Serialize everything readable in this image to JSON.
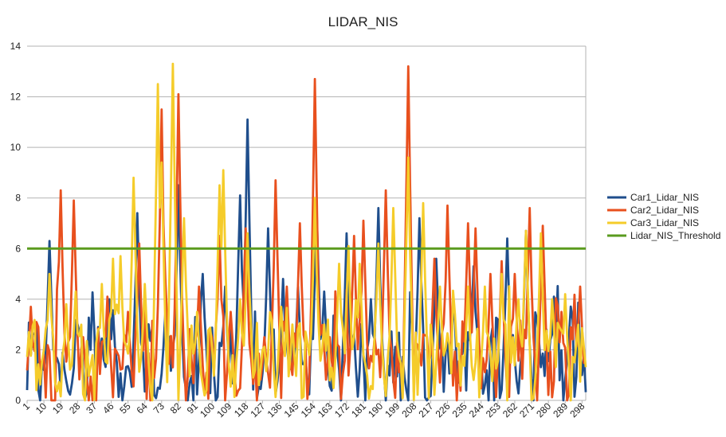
{
  "chart_data": {
    "type": "line",
    "title": "LIDAR_NIS",
    "xlabel": "",
    "ylabel": "",
    "ylim": [
      0,
      14
    ],
    "xlim": [
      1,
      300
    ],
    "yticks": [
      0,
      2,
      4,
      6,
      8,
      10,
      12,
      14
    ],
    "xticks": [
      1,
      10,
      19,
      28,
      37,
      46,
      55,
      64,
      73,
      82,
      91,
      100,
      109,
      118,
      127,
      136,
      145,
      154,
      163,
      172,
      181,
      190,
      199,
      208,
      217,
      226,
      235,
      244,
      253,
      262,
      271,
      280,
      289,
      298
    ],
    "grid": "horizontal",
    "legend_position": "right",
    "series": [
      {
        "name": "Car1_Lidar_NIS",
        "color": "#1f4e8c",
        "peaks": [
          [
            13,
            6.3
          ],
          [
            21,
            1.2
          ],
          [
            28,
            3.0
          ],
          [
            45,
            4.0
          ],
          [
            60,
            7.4
          ],
          [
            75,
            3.5
          ],
          [
            82,
            8.5
          ],
          [
            95,
            5.0
          ],
          [
            107,
            4.5
          ],
          [
            115,
            8.1
          ],
          [
            119,
            11.1
          ],
          [
            130,
            6.8
          ],
          [
            138,
            4.8
          ],
          [
            146,
            4.5
          ],
          [
            156,
            7.5
          ],
          [
            160,
            4.3
          ],
          [
            172,
            6.6
          ],
          [
            185,
            4.0
          ],
          [
            189,
            7.6
          ],
          [
            211,
            7.2
          ],
          [
            220,
            5.6
          ],
          [
            229,
            3.5
          ],
          [
            240,
            5.3
          ],
          [
            258,
            6.4
          ],
          [
            268,
            6.7
          ],
          [
            283,
            4.1
          ],
          [
            291,
            2.5
          ],
          [
            298,
            1.0
          ]
        ]
      },
      {
        "name": "Car2_Lidar_NIS",
        "color": "#e8501e",
        "peaks": [
          [
            3,
            3.7
          ],
          [
            6,
            3.1
          ],
          [
            19,
            8.3
          ],
          [
            23,
            2.3
          ],
          [
            26,
            7.9
          ],
          [
            31,
            2.5
          ],
          [
            44,
            4.1
          ],
          [
            55,
            3.5
          ],
          [
            61,
            6.2
          ],
          [
            73,
            11.5
          ],
          [
            75,
            4.8
          ],
          [
            82,
            12.1
          ],
          [
            93,
            4.5
          ],
          [
            104,
            6.5
          ],
          [
            110,
            3.5
          ],
          [
            118,
            6.8
          ],
          [
            128,
            2.5
          ],
          [
            134,
            8.7
          ],
          [
            140,
            4.5
          ],
          [
            147,
            7.0
          ],
          [
            155,
            12.7
          ],
          [
            163,
            2.5
          ],
          [
            176,
            6.5
          ],
          [
            181,
            7.1
          ],
          [
            187,
            2.5
          ],
          [
            193,
            8.3
          ],
          [
            205,
            13.2
          ],
          [
            219,
            5.6
          ],
          [
            226,
            7.7
          ],
          [
            237,
            7.0
          ],
          [
            241,
            6.8
          ],
          [
            249,
            5.0
          ],
          [
            255,
            5.5
          ],
          [
            262,
            5.0
          ],
          [
            270,
            7.6
          ],
          [
            277,
            6.9
          ],
          [
            287,
            3.5
          ],
          [
            297,
            4.5
          ]
        ]
      },
      {
        "name": "Car3_Lidar_NIS",
        "color": "#f5cc2a",
        "peaks": [
          [
            2,
            2.7
          ],
          [
            10,
            2.0
          ],
          [
            13,
            5.0
          ],
          [
            22,
            3.8
          ],
          [
            27,
            4.3
          ],
          [
            41,
            4.6
          ],
          [
            47,
            5.6
          ],
          [
            51,
            5.7
          ],
          [
            58,
            8.8
          ],
          [
            64,
            4.6
          ],
          [
            71,
            12.5
          ],
          [
            73,
            9.4
          ],
          [
            79,
            13.3
          ],
          [
            85,
            7.2
          ],
          [
            92,
            3.5
          ],
          [
            104,
            8.5
          ],
          [
            106,
            9.1
          ],
          [
            115,
            4.0
          ],
          [
            119,
            6.6
          ],
          [
            127,
            2.0
          ],
          [
            137,
            3.7
          ],
          [
            143,
            3.0
          ],
          [
            155,
            8.0
          ],
          [
            160,
            3.0
          ],
          [
            168,
            5.4
          ],
          [
            173,
            6.1
          ],
          [
            179,
            5.4
          ],
          [
            189,
            6.2
          ],
          [
            197,
            7.6
          ],
          [
            205,
            9.6
          ],
          [
            213,
            7.8
          ],
          [
            222,
            4.5
          ],
          [
            230,
            3.4
          ],
          [
            237,
            4.5
          ],
          [
            246,
            4.5
          ],
          [
            255,
            5.0
          ],
          [
            264,
            4.0
          ],
          [
            268,
            6.7
          ],
          [
            276,
            6.6
          ],
          [
            282,
            4.0
          ],
          [
            289,
            4.2
          ],
          [
            295,
            2.3
          ],
          [
            299,
            2.1
          ]
        ]
      },
      {
        "name": "Lidar_NIS_Threshold",
        "color": "#5a9b1f",
        "value": 6
      }
    ]
  }
}
